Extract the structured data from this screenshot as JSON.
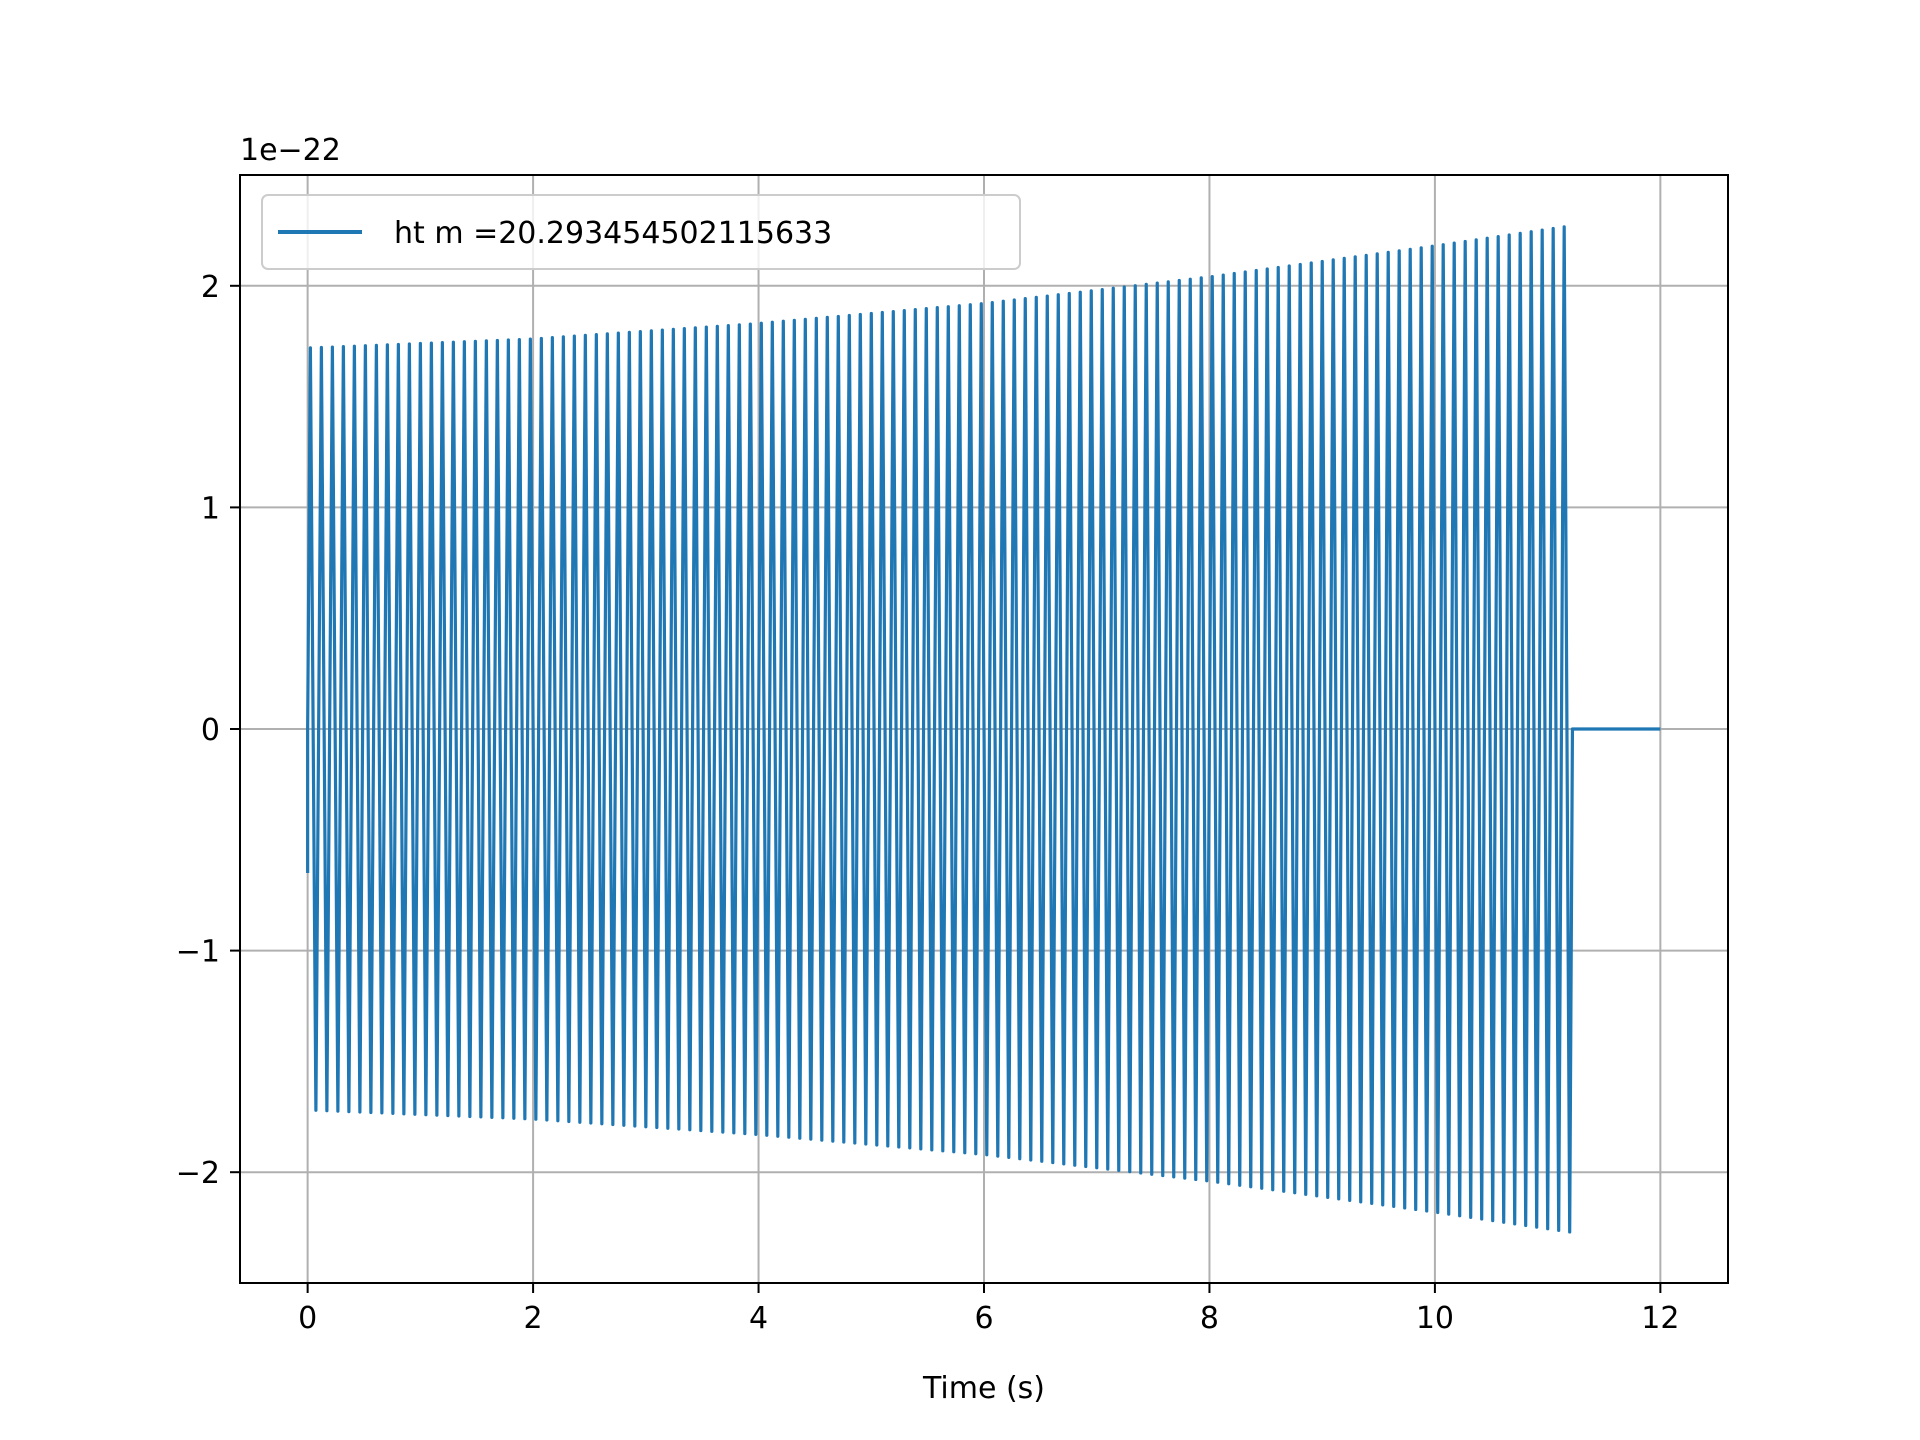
{
  "chart_data": {
    "type": "line",
    "title": "",
    "xlabel": "Time (s)",
    "ylabel": "",
    "offset_label": "1e−22",
    "xlim": [
      -0.6,
      12.6
    ],
    "ylim": [
      -2.5,
      2.5
    ],
    "grid": true,
    "legend_position": "upper-left",
    "x_ticks": [
      0,
      2,
      4,
      6,
      8,
      10,
      12
    ],
    "x_tick_labels": [
      "0",
      "2",
      "4",
      "6",
      "8",
      "10",
      "12"
    ],
    "y_ticks": [
      -2,
      -1,
      0,
      1,
      2
    ],
    "y_tick_labels": [
      "−2",
      "−1",
      "0",
      "1",
      "2"
    ],
    "series": [
      {
        "name": "ht m =20.293454502115633",
        "color": "#1f77b4",
        "signal_start": 0.0,
        "signal_end": 11.22,
        "data_end": 12.0,
        "initial_value": -0.65,
        "cycles_in_signal": 115,
        "envelope": [
          {
            "x": 0.05,
            "amplitude": 1.72
          },
          {
            "x": 2.0,
            "amplitude": 1.76
          },
          {
            "x": 4.0,
            "amplitude": 1.83
          },
          {
            "x": 6.0,
            "amplitude": 1.92
          },
          {
            "x": 8.0,
            "amplitude": 2.04
          },
          {
            "x": 10.0,
            "amplitude": 2.18
          },
          {
            "x": 11.2,
            "amplitude": 2.27
          }
        ],
        "post_signal_value": 0.0
      }
    ]
  }
}
